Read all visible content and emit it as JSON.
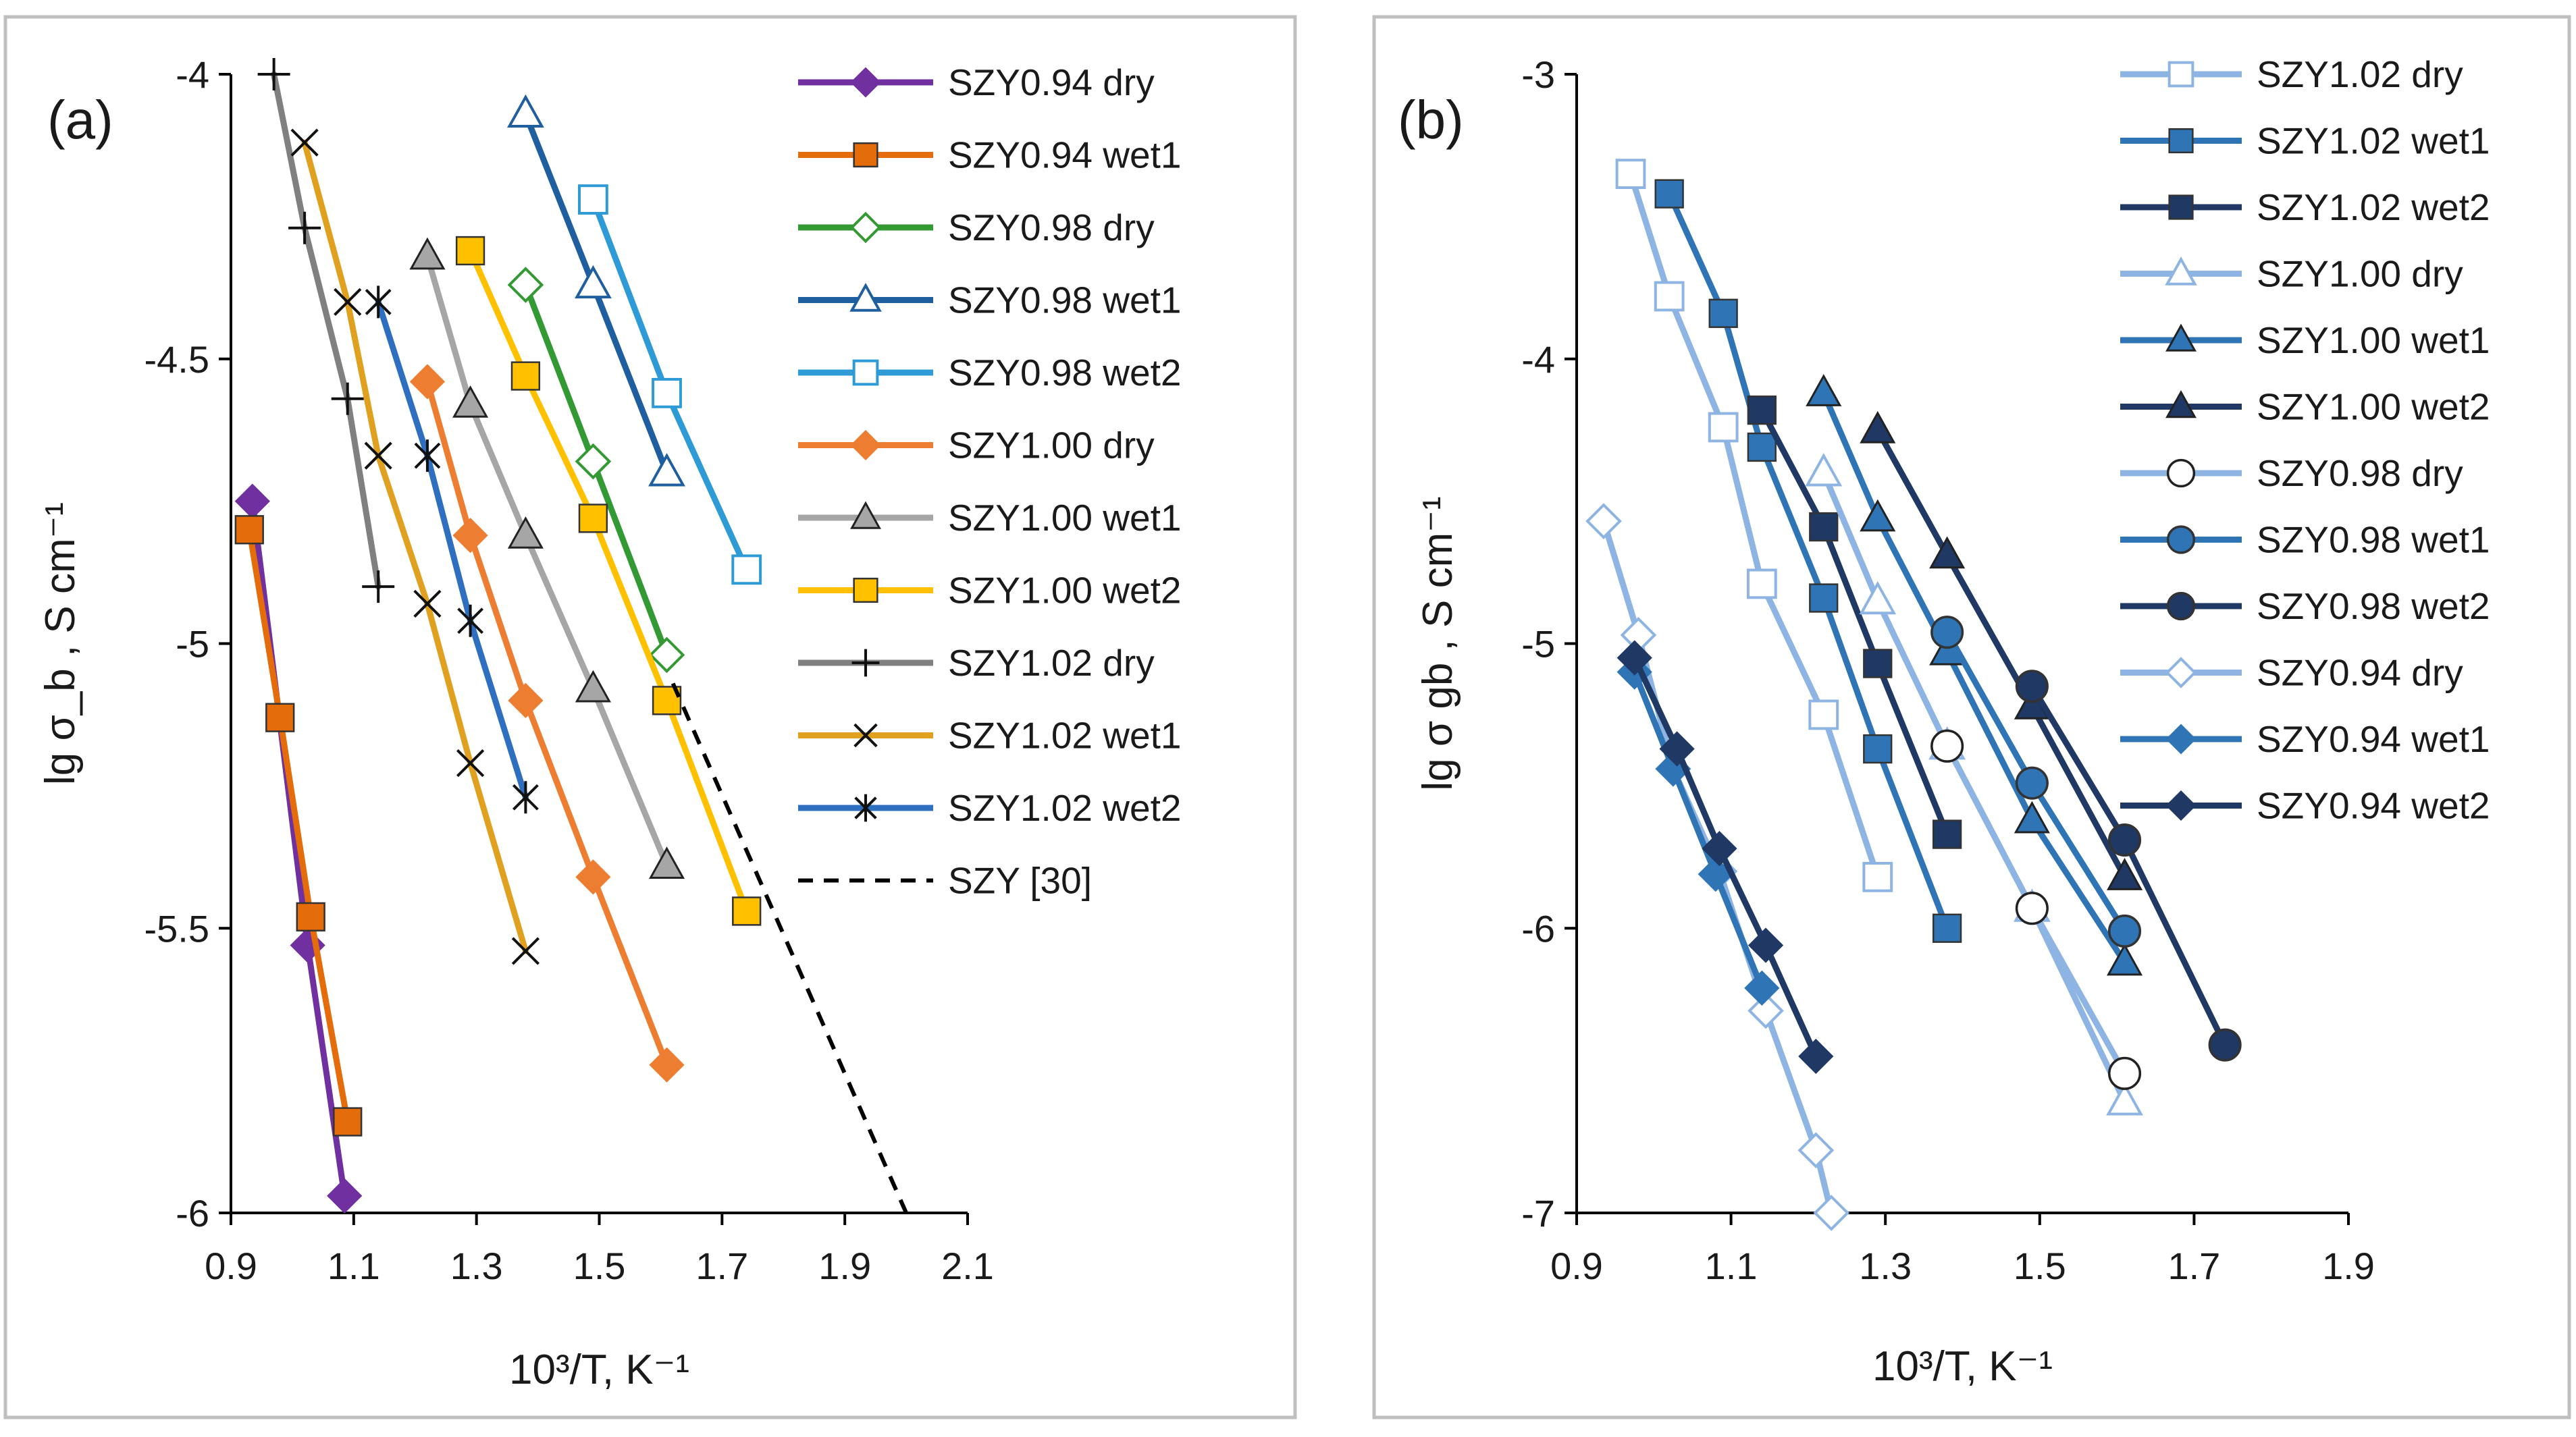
{
  "figure": {
    "panels": [
      "a",
      "b"
    ]
  },
  "chart_data": [
    {
      "type": "line",
      "panel_label": "(a)",
      "xlabel": "10³/T, K⁻¹",
      "ylabel": "lg σ_b , S cm⁻¹",
      "xlim": [
        0.9,
        2.1
      ],
      "ylim": [
        -6,
        -4
      ],
      "xticks": [
        "0.9",
        "1.1",
        "1.3",
        "1.5",
        "1.7",
        "1.9",
        "2.1"
      ],
      "yticks": [
        "-4",
        "-4.5",
        "-5",
        "-5.5",
        "-6"
      ],
      "legend_position": "right",
      "series": [
        {
          "name": "SZY0.94 dry",
          "color": "#7030a0",
          "marker": "diamond",
          "x": [
            0.935,
            1.025,
            1.085
          ],
          "y": [
            -4.75,
            -5.53,
            -5.97
          ]
        },
        {
          "name": "SZY0.94 wet1",
          "color": "#e46c0a",
          "marker": "square",
          "x": [
            0.93,
            0.98,
            1.03,
            1.09
          ],
          "y": [
            -4.8,
            -5.13,
            -5.48,
            -5.84
          ]
        },
        {
          "name": "SZY0.98 dry",
          "color": "#339933",
          "marker": "diamond-open",
          "x": [
            1.38,
            1.49,
            1.61
          ],
          "y": [
            -4.37,
            -4.68,
            -5.02
          ]
        },
        {
          "name": "SZY0.98 wet1",
          "color": "#1f5f9f",
          "marker": "triangle-open",
          "x": [
            1.38,
            1.49,
            1.61
          ],
          "y": [
            -4.07,
            -4.37,
            -4.7
          ]
        },
        {
          "name": "SZY0.98 wet2",
          "color": "#2e9bd6",
          "marker": "square-open",
          "x": [
            1.49,
            1.61,
            1.74
          ],
          "y": [
            -4.22,
            -4.56,
            -4.87
          ]
        },
        {
          "name": "SZY1.00 dry",
          "color": "#ed7d31",
          "marker": "diamond",
          "x": [
            1.22,
            1.29,
            1.38,
            1.49,
            1.61
          ],
          "y": [
            -4.54,
            -4.81,
            -5.1,
            -5.41,
            -5.74
          ]
        },
        {
          "name": "SZY1.00 wet1",
          "color": "#a6a6a6",
          "marker": "triangle",
          "x": [
            1.22,
            1.29,
            1.38,
            1.49,
            1.61
          ],
          "y": [
            -4.32,
            -4.58,
            -4.81,
            -5.08,
            -5.39
          ]
        },
        {
          "name": "SZY1.00 wet2",
          "color": "#ffc000",
          "marker": "square",
          "x": [
            1.29,
            1.38,
            1.49,
            1.61,
            1.74
          ],
          "y": [
            -4.31,
            -4.53,
            -4.78,
            -5.1,
            -5.47
          ]
        },
        {
          "name": "SZY1.02 dry",
          "color": "#808080",
          "marker": "plus",
          "x": [
            0.97,
            1.02,
            1.09,
            1.14
          ],
          "y": [
            -4.0,
            -4.27,
            -4.57,
            -4.9
          ]
        },
        {
          "name": "SZY1.02 wet1",
          "color": "#e0a020",
          "marker": "x",
          "x": [
            1.02,
            1.09,
            1.14,
            1.22,
            1.29,
            1.38
          ],
          "y": [
            -4.12,
            -4.4,
            -4.67,
            -4.93,
            -5.21,
            -5.54
          ]
        },
        {
          "name": "SZY1.02 wet2",
          "color": "#2f6fc0",
          "marker": "star",
          "x": [
            1.14,
            1.22,
            1.29,
            1.38
          ],
          "y": [
            -4.4,
            -4.67,
            -4.96,
            -5.27
          ]
        },
        {
          "name": "SZY [30]",
          "color": "#000000",
          "marker": "none",
          "dashed": true,
          "x": [
            1.62,
            2.0
          ],
          "y": [
            -5.07,
            -6.0
          ]
        }
      ]
    },
    {
      "type": "line",
      "panel_label": "(b)",
      "xlabel": "10³/T, K⁻¹",
      "ylabel": "lg σ gb , S cm⁻¹",
      "xlim": [
        0.9,
        1.9
      ],
      "ylim": [
        -7,
        -3
      ],
      "xticks": [
        "0.9",
        "1.1",
        "1.3",
        "1.5",
        "1.7",
        "1.9"
      ],
      "yticks": [
        "-3",
        "-4",
        "-5",
        "-6",
        "-7"
      ],
      "legend_position": "top-right",
      "series": [
        {
          "name": "SZY1.02 dry",
          "color": "#8db4e2",
          "marker": "square-open",
          "x": [
            0.97,
            1.02,
            1.09,
            1.14,
            1.22,
            1.29
          ],
          "y": [
            -3.35,
            -3.78,
            -4.24,
            -4.79,
            -5.25,
            -5.82
          ]
        },
        {
          "name": "SZY1.02 wet1",
          "color": "#2f75b5",
          "marker": "square",
          "x": [
            1.02,
            1.09,
            1.14,
            1.22,
            1.29,
            1.38
          ],
          "y": [
            -3.42,
            -3.84,
            -4.31,
            -4.84,
            -5.37,
            -6.0
          ]
        },
        {
          "name": "SZY1.02 wet2",
          "color": "#1f3864",
          "marker": "square",
          "x": [
            1.14,
            1.22,
            1.29,
            1.38
          ],
          "y": [
            -4.18,
            -4.59,
            -5.07,
            -5.67
          ]
        },
        {
          "name": "SZY1.00 dry",
          "color": "#8db4e2",
          "marker": "triangle-open",
          "x": [
            1.22,
            1.29,
            1.38,
            1.49,
            1.61
          ],
          "y": [
            -4.4,
            -4.85,
            -5.36,
            -5.93,
            -6.61
          ]
        },
        {
          "name": "SZY1.00 wet1",
          "color": "#2f75b5",
          "marker": "triangle",
          "x": [
            1.22,
            1.29,
            1.38,
            1.49,
            1.61
          ],
          "y": [
            -4.12,
            -4.56,
            -5.03,
            -5.62,
            -6.12
          ]
        },
        {
          "name": "SZY1.00 wet2",
          "color": "#1f3864",
          "marker": "triangle",
          "x": [
            1.29,
            1.38,
            1.49,
            1.61
          ],
          "y": [
            -4.25,
            -4.69,
            -5.22,
            -5.82
          ]
        },
        {
          "name": "SZY0.98 dry",
          "color": "#8db4e2",
          "marker": "circle-open",
          "x": [
            1.38,
            1.49,
            1.61
          ],
          "y": [
            -5.36,
            -5.93,
            -6.51
          ]
        },
        {
          "name": "SZY0.98 wet1",
          "color": "#2f75b5",
          "marker": "circle",
          "x": [
            1.38,
            1.49,
            1.61
          ],
          "y": [
            -4.96,
            -5.49,
            -6.01
          ]
        },
        {
          "name": "SZY0.98 wet2",
          "color": "#1f3864",
          "marker": "circle",
          "x": [
            1.49,
            1.61,
            1.74
          ],
          "y": [
            -5.15,
            -5.69,
            -6.41
          ]
        },
        {
          "name": "SZY0.94 dry",
          "color": "#8db4e2",
          "marker": "diamond-open",
          "x": [
            0.935,
            0.98,
            1.025,
            1.085,
            1.145,
            1.21,
            1.23
          ],
          "y": [
            -4.57,
            -4.97,
            -5.44,
            -5.8,
            -6.29,
            -6.78,
            -7.0
          ]
        },
        {
          "name": "SZY0.94 wet1",
          "color": "#2f75b5",
          "marker": "diamond",
          "x": [
            0.975,
            1.025,
            1.08,
            1.14
          ],
          "y": [
            -5.1,
            -5.44,
            -5.81,
            -6.21
          ]
        },
        {
          "name": "SZY0.94 wet2",
          "color": "#1f3864",
          "marker": "diamond",
          "x": [
            0.975,
            1.03,
            1.085,
            1.145,
            1.21
          ],
          "y": [
            -5.05,
            -5.37,
            -5.72,
            -6.06,
            -6.45
          ]
        }
      ]
    }
  ]
}
